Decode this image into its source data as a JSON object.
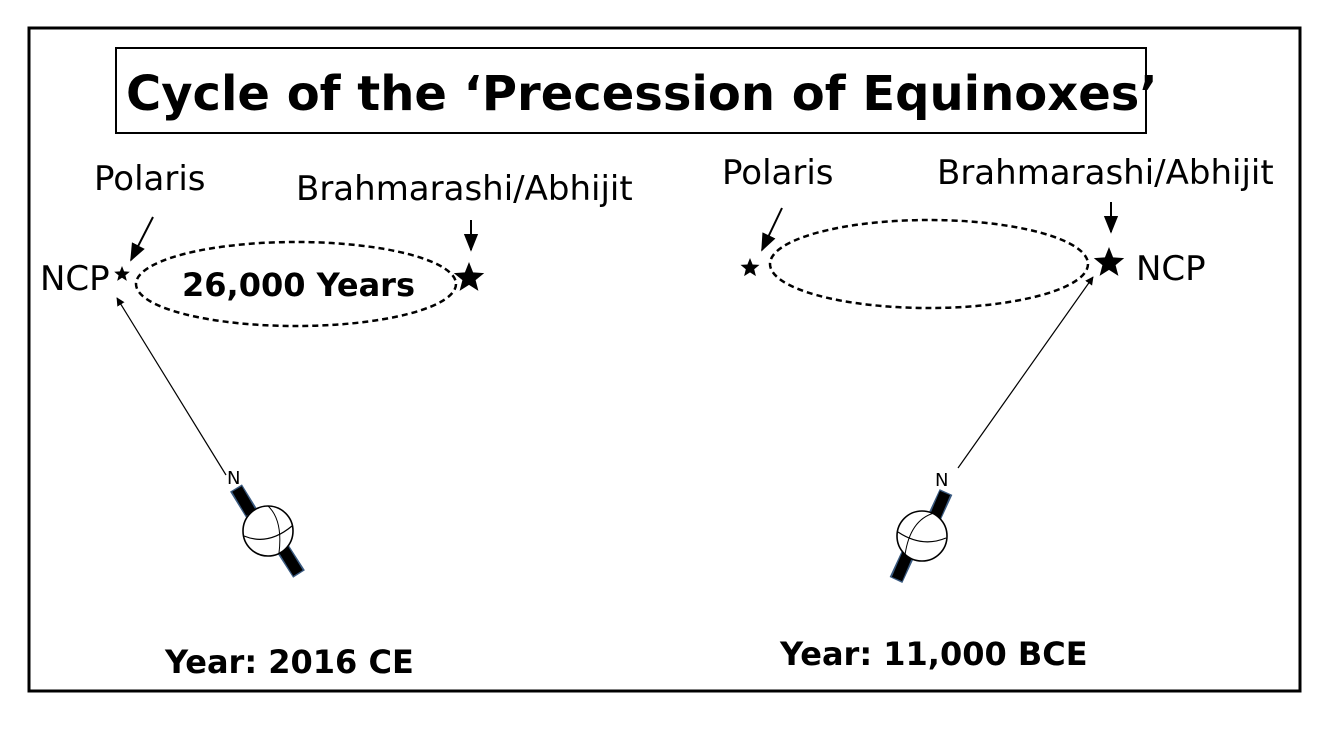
{
  "title": "Cycle of the ‘Precession of Equinoxes’",
  "left_panel": {
    "star_label_1": "Polaris",
    "star_label_2": "Brahmarashi/Abhijit",
    "pole_label": "NCP",
    "cycle_label": "26,000 Years",
    "axis_label": "N",
    "year_label": "Year: 2016 CE"
  },
  "right_panel": {
    "star_label_1": "Polaris",
    "star_label_2": "Brahmarashi/Abhijit",
    "pole_label": "NCP",
    "axis_label": "N",
    "year_label": "Year: 11,000 BCE"
  },
  "colors": {
    "ink": "#000000",
    "background": "#ffffff",
    "axis_cap_outline": "#3a5a80"
  }
}
